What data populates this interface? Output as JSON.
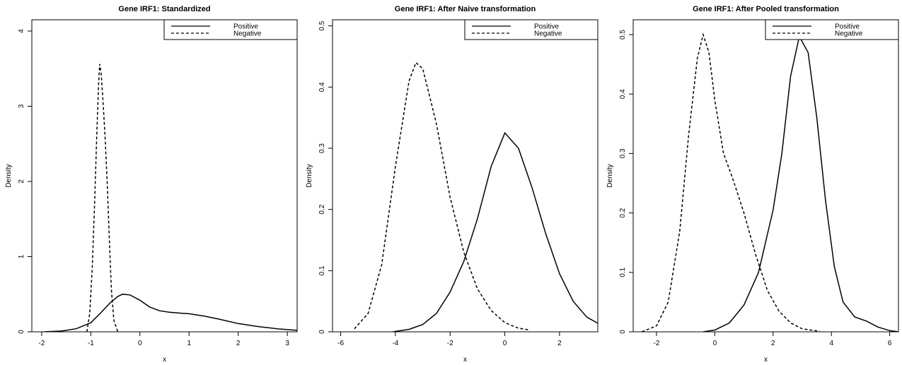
{
  "chart_data": [
    {
      "type": "line",
      "title": "Gene IRF1: Standardized",
      "xlabel": "x",
      "ylabel": "Density",
      "xlim": [
        -2.2,
        3.2
      ],
      "ylim": [
        0,
        4.15
      ],
      "xticks": [
        -2,
        -1,
        0,
        1,
        2,
        3
      ],
      "yticks": [
        0,
        1,
        2,
        3,
        4
      ],
      "grid": false,
      "legend": "top-right",
      "series": [
        {
          "name": "Positive",
          "style": "solid",
          "x": [
            -1.95,
            -1.6,
            -1.3,
            -1.0,
            -0.8,
            -0.6,
            -0.45,
            -0.35,
            -0.2,
            0.0,
            0.2,
            0.4,
            0.6,
            0.8,
            1.0,
            1.3,
            1.6,
            2.0,
            2.4,
            2.8,
            3.2
          ],
          "y": [
            0.0,
            0.01,
            0.04,
            0.12,
            0.25,
            0.39,
            0.47,
            0.5,
            0.49,
            0.42,
            0.33,
            0.28,
            0.26,
            0.25,
            0.24,
            0.21,
            0.17,
            0.11,
            0.07,
            0.04,
            0.02
          ]
        },
        {
          "name": "Negative",
          "style": "dashed",
          "x": [
            -1.08,
            -1.02,
            -0.97,
            -0.92,
            -0.88,
            -0.84,
            -0.82,
            -0.79,
            -0.75,
            -0.71,
            -0.66,
            -0.62,
            -0.58,
            -0.53,
            -0.45
          ],
          "y": [
            0.0,
            0.25,
            0.85,
            1.75,
            2.6,
            3.3,
            3.56,
            3.45,
            3.05,
            2.6,
            1.9,
            1.2,
            0.55,
            0.15,
            0.0
          ]
        }
      ]
    },
    {
      "type": "line",
      "title": "Gene IRF1: After Naive transformation",
      "xlabel": "x",
      "ylabel": "Density",
      "xlim": [
        -6.3,
        3.4
      ],
      "ylim": [
        0,
        0.51
      ],
      "xticks": [
        -6,
        -4,
        -2,
        0,
        2
      ],
      "yticks": [
        0.0,
        0.1,
        0.2,
        0.3,
        0.4,
        0.5
      ],
      "grid": false,
      "legend": "top-right",
      "series": [
        {
          "name": "Positive",
          "style": "solid",
          "x": [
            -4.1,
            -3.5,
            -3.0,
            -2.5,
            -2.0,
            -1.5,
            -1.0,
            -0.5,
            0.0,
            0.5,
            1.0,
            1.5,
            2.0,
            2.5,
            3.0,
            3.4
          ],
          "y": [
            0.0,
            0.004,
            0.012,
            0.03,
            0.065,
            0.115,
            0.185,
            0.27,
            0.325,
            0.3,
            0.235,
            0.16,
            0.095,
            0.05,
            0.024,
            0.014
          ]
        },
        {
          "name": "Negative",
          "style": "dashed",
          "x": [
            -5.5,
            -5.0,
            -4.5,
            -4.0,
            -3.5,
            -3.25,
            -3.0,
            -2.5,
            -2.0,
            -1.5,
            -1.0,
            -0.5,
            0.0,
            0.5,
            0.9
          ],
          "y": [
            0.005,
            0.03,
            0.11,
            0.27,
            0.41,
            0.44,
            0.43,
            0.34,
            0.22,
            0.13,
            0.07,
            0.035,
            0.015,
            0.006,
            0.003
          ]
        }
      ]
    },
    {
      "type": "line",
      "title": "Gene IRF1: After Pooled transformation",
      "xlabel": "x",
      "ylabel": "Density",
      "xlim": [
        -2.8,
        6.3
      ],
      "ylim": [
        0,
        0.525
      ],
      "xticks": [
        -2,
        0,
        2,
        4,
        6
      ],
      "yticks": [
        0.0,
        0.1,
        0.2,
        0.3,
        0.4,
        0.5
      ],
      "grid": false,
      "legend": "top-right",
      "series": [
        {
          "name": "Positive",
          "style": "solid",
          "x": [
            -0.4,
            0.0,
            0.5,
            1.0,
            1.5,
            2.0,
            2.3,
            2.6,
            2.9,
            3.2,
            3.5,
            3.8,
            4.1,
            4.4,
            4.8,
            5.2,
            5.6,
            6.0,
            6.3
          ],
          "y": [
            0.0,
            0.003,
            0.015,
            0.045,
            0.1,
            0.205,
            0.3,
            0.43,
            0.497,
            0.47,
            0.36,
            0.22,
            0.11,
            0.05,
            0.025,
            0.018,
            0.008,
            0.002,
            0.0
          ]
        },
        {
          "name": "Negative",
          "style": "dashed",
          "x": [
            -2.5,
            -2.0,
            -1.6,
            -1.2,
            -0.9,
            -0.6,
            -0.4,
            -0.2,
            0.0,
            0.3,
            0.6,
            1.0,
            1.4,
            1.8,
            2.2,
            2.6,
            3.0,
            3.6
          ],
          "y": [
            0.0,
            0.01,
            0.05,
            0.17,
            0.33,
            0.46,
            0.5,
            0.47,
            0.39,
            0.3,
            0.26,
            0.2,
            0.13,
            0.07,
            0.035,
            0.015,
            0.005,
            0.001
          ]
        }
      ]
    }
  ]
}
